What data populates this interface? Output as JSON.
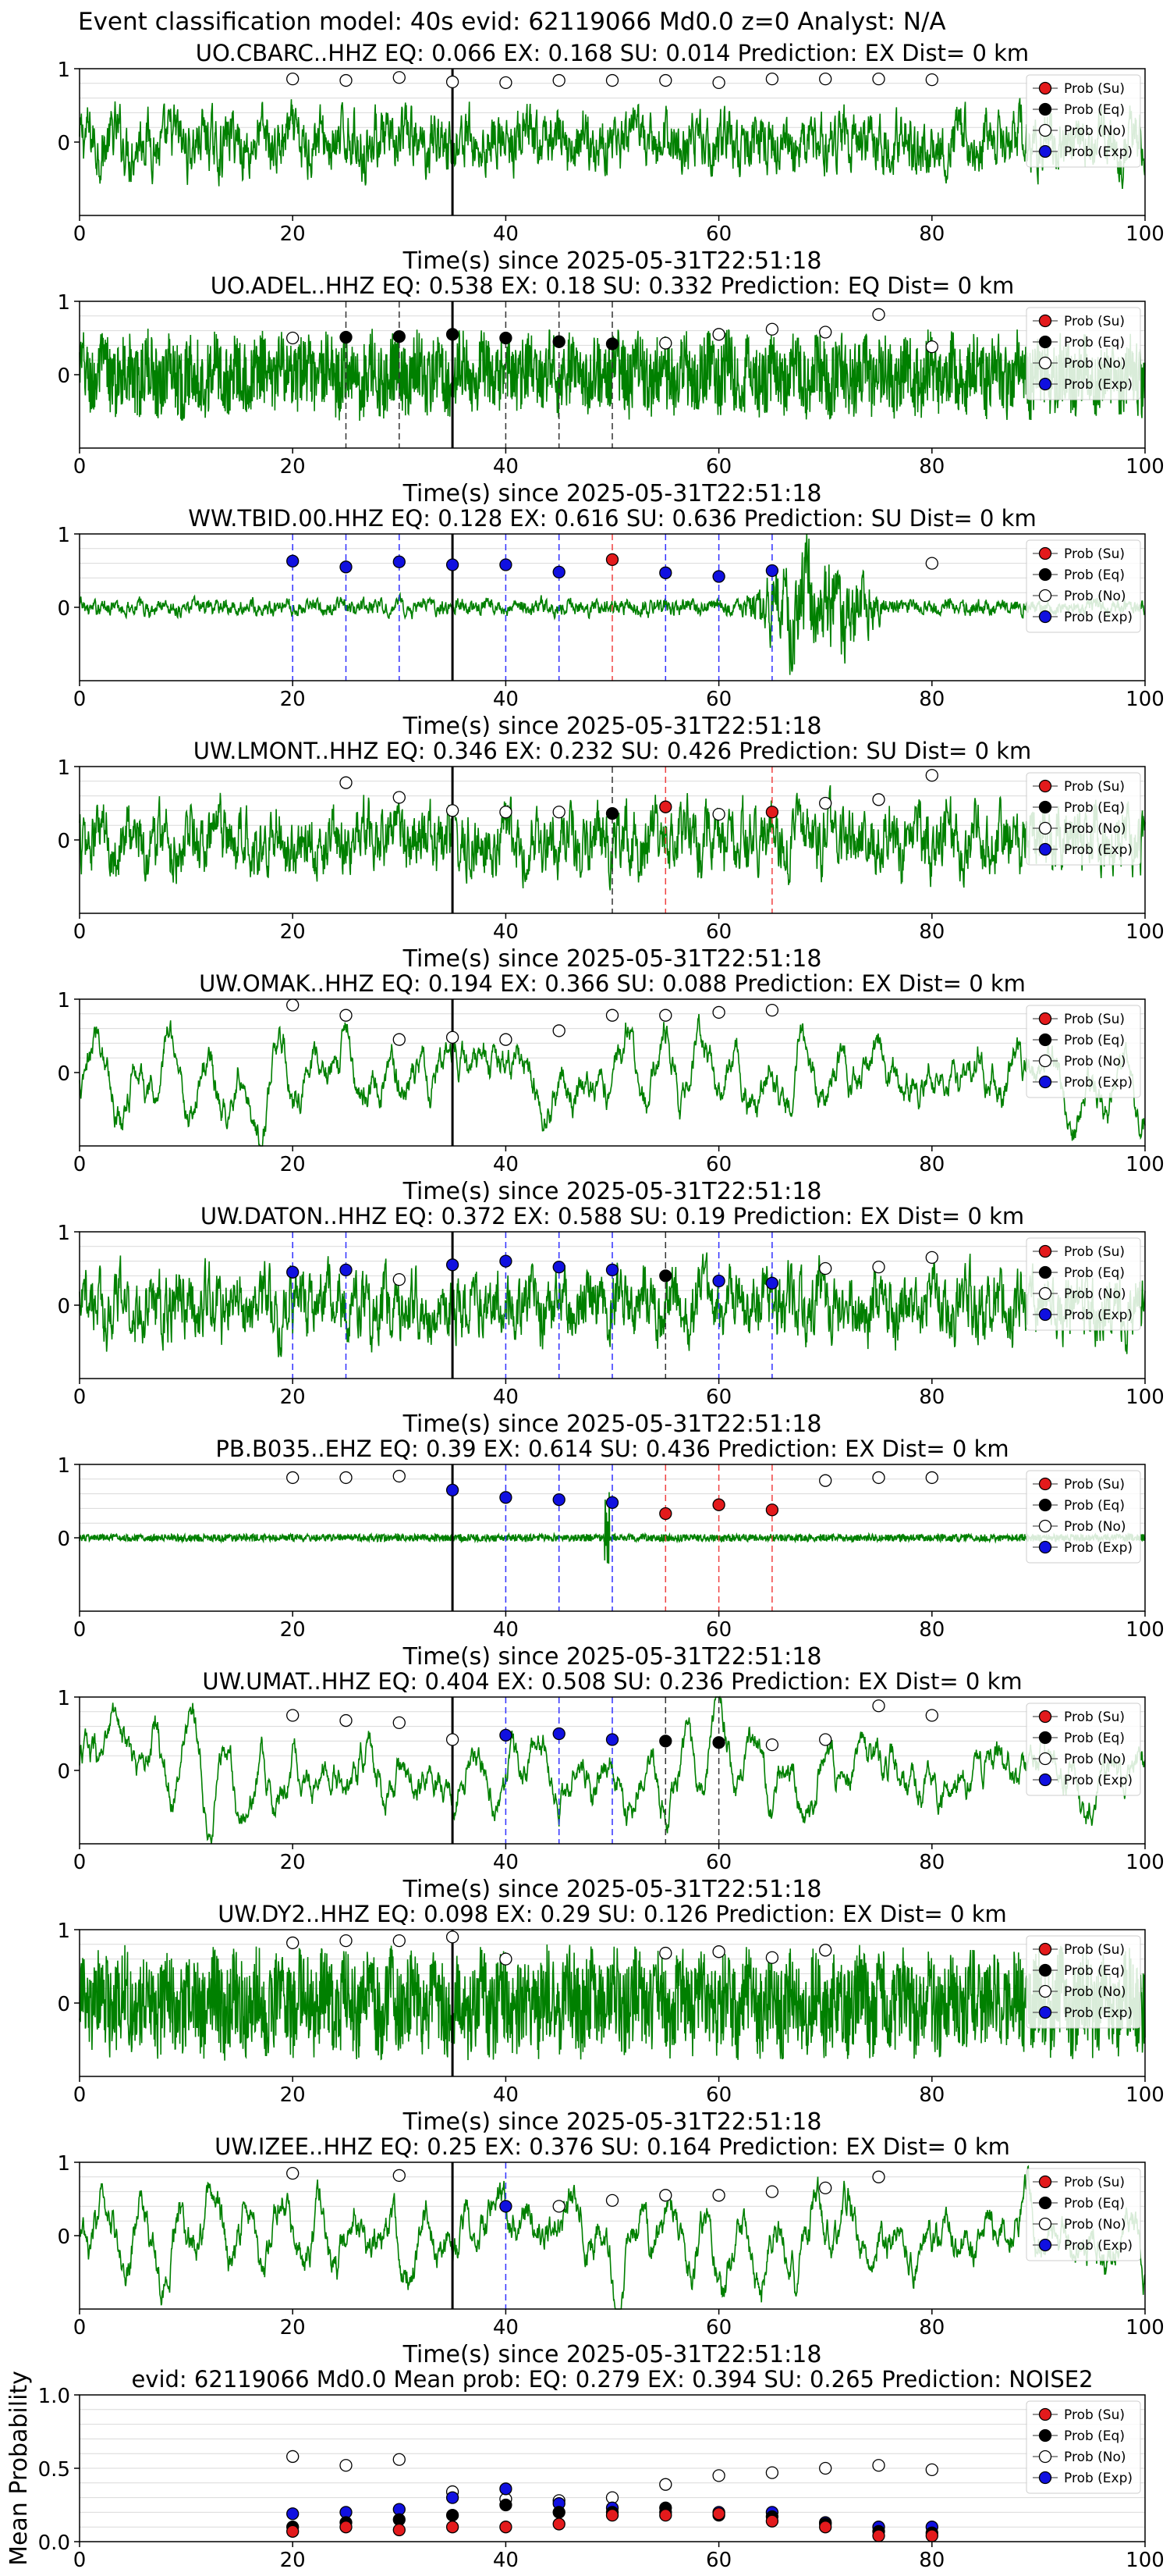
{
  "figure": {
    "title": "Event classification model: 40s evid: 62119066 Md0.0 z=0 Analyst: N/A"
  },
  "legend": [
    "Prob (Su)",
    "Prob (Eq)",
    "Prob (No)",
    "Prob (Exp)"
  ],
  "colors": {
    "su": "#e31a1c",
    "eq": "#000000",
    "no": "#ffffff",
    "exp": "#1010e0",
    "waveform": "#008000",
    "grid": "#d9d9d9"
  },
  "chart_data": [
    {
      "type": "line",
      "title": "UO.CBARC..HHZ   EQ: 0.066  EX: 0.168  SU: 0.014   Prediction: EX    Dist= 0 km",
      "xlabel": "Time(s) since 2025-05-31T22:51:18",
      "xlim": [
        0,
        100
      ],
      "ylim": [
        -1,
        1
      ],
      "xticks": [
        "0",
        "20",
        "40",
        "60",
        "80",
        "100"
      ],
      "yticks": [
        "0",
        "1"
      ],
      "grid": true,
      "waveform": {
        "amplitude": 0.45,
        "style": "broadband"
      },
      "origin_time": 35,
      "predictions": [
        {
          "t": 20,
          "class": "no",
          "p": 0.86
        },
        {
          "t": 25,
          "class": "no",
          "p": 0.84
        },
        {
          "t": 30,
          "class": "no",
          "p": 0.88
        },
        {
          "t": 35,
          "class": "no",
          "p": 0.82
        },
        {
          "t": 40,
          "class": "no",
          "p": 0.81
        },
        {
          "t": 45,
          "class": "no",
          "p": 0.84
        },
        {
          "t": 50,
          "class": "no",
          "p": 0.84
        },
        {
          "t": 55,
          "class": "no",
          "p": 0.84
        },
        {
          "t": 60,
          "class": "no",
          "p": 0.81
        },
        {
          "t": 65,
          "class": "no",
          "p": 0.86
        },
        {
          "t": 70,
          "class": "no",
          "p": 0.86
        },
        {
          "t": 75,
          "class": "no",
          "p": 0.86
        },
        {
          "t": 80,
          "class": "no",
          "p": 0.85
        }
      ]
    },
    {
      "type": "line",
      "title": "UO.ADEL..HHZ   EQ: 0.538  EX: 0.18  SU: 0.332   Prediction: EQ    Dist= 0 km",
      "xlabel": "Time(s) since 2025-05-31T22:51:18",
      "xlim": [
        0,
        100
      ],
      "ylim": [
        -1,
        1
      ],
      "xticks": [
        "0",
        "20",
        "40",
        "60",
        "80",
        "100"
      ],
      "yticks": [
        "0",
        "1"
      ],
      "grid": true,
      "waveform": {
        "amplitude": 0.55,
        "style": "noisy"
      },
      "origin_time": 35,
      "predictions": [
        {
          "t": 20,
          "class": "no",
          "p": 0.5
        },
        {
          "t": 25,
          "class": "eq",
          "p": 0.51
        },
        {
          "t": 30,
          "class": "eq",
          "p": 0.52
        },
        {
          "t": 35,
          "class": "eq",
          "p": 0.55
        },
        {
          "t": 40,
          "class": "eq",
          "p": 0.5
        },
        {
          "t": 45,
          "class": "eq",
          "p": 0.45
        },
        {
          "t": 50,
          "class": "eq",
          "p": 0.42
        },
        {
          "t": 55,
          "class": "no",
          "p": 0.43
        },
        {
          "t": 60,
          "class": "no",
          "p": 0.55
        },
        {
          "t": 65,
          "class": "no",
          "p": 0.62
        },
        {
          "t": 70,
          "class": "no",
          "p": 0.58
        },
        {
          "t": 75,
          "class": "no",
          "p": 0.82
        },
        {
          "t": 80,
          "class": "no",
          "p": 0.38
        }
      ]
    },
    {
      "type": "line",
      "title": "WW.TBID.00.HHZ   EQ: 0.128  EX: 0.616  SU: 0.636   Prediction: SU    Dist= 0 km",
      "xlabel": "Time(s) since 2025-05-31T22:51:18",
      "xlim": [
        0,
        100
      ],
      "ylim": [
        -1,
        1
      ],
      "xticks": [
        "0",
        "20",
        "40",
        "60",
        "80",
        "100"
      ],
      "yticks": [
        "0",
        "1"
      ],
      "grid": true,
      "waveform": {
        "amplitude": 0.12,
        "style": "burst",
        "burst_start": 62,
        "burst_end": 76,
        "burst_amp": 0.85
      },
      "origin_time": 35,
      "predictions": [
        {
          "t": 20,
          "class": "exp",
          "p": 0.63
        },
        {
          "t": 25,
          "class": "exp",
          "p": 0.55
        },
        {
          "t": 30,
          "class": "exp",
          "p": 0.62
        },
        {
          "t": 35,
          "class": "exp",
          "p": 0.58
        },
        {
          "t": 40,
          "class": "exp",
          "p": 0.58
        },
        {
          "t": 45,
          "class": "exp",
          "p": 0.48
        },
        {
          "t": 50,
          "class": "su",
          "p": 0.65
        },
        {
          "t": 55,
          "class": "exp",
          "p": 0.47
        },
        {
          "t": 60,
          "class": "exp",
          "p": 0.42
        },
        {
          "t": 65,
          "class": "exp",
          "p": 0.5
        },
        {
          "t": 80,
          "class": "no",
          "p": 0.6
        }
      ]
    },
    {
      "type": "line",
      "title": "UW.LMONT..HHZ   EQ: 0.346  EX: 0.232  SU: 0.426   Prediction: SU    Dist= 0 km",
      "xlabel": "Time(s) since 2025-05-31T22:51:18",
      "xlim": [
        0,
        100
      ],
      "ylim": [
        -1,
        1
      ],
      "xticks": [
        "0",
        "20",
        "40",
        "60",
        "80",
        "100"
      ],
      "yticks": [
        "0",
        "1"
      ],
      "grid": true,
      "waveform": {
        "amplitude": 0.5,
        "style": "broadband"
      },
      "origin_time": 35,
      "predictions": [
        {
          "t": 25,
          "class": "no",
          "p": 0.78
        },
        {
          "t": 30,
          "class": "no",
          "p": 0.58
        },
        {
          "t": 35,
          "class": "no",
          "p": 0.4
        },
        {
          "t": 40,
          "class": "no",
          "p": 0.38
        },
        {
          "t": 45,
          "class": "no",
          "p": 0.38
        },
        {
          "t": 50,
          "class": "eq",
          "p": 0.36
        },
        {
          "t": 55,
          "class": "su",
          "p": 0.45
        },
        {
          "t": 60,
          "class": "no",
          "p": 0.35
        },
        {
          "t": 65,
          "class": "su",
          "p": 0.38
        },
        {
          "t": 70,
          "class": "no",
          "p": 0.5
        },
        {
          "t": 75,
          "class": "no",
          "p": 0.55
        },
        {
          "t": 80,
          "class": "no",
          "p": 0.88
        }
      ]
    },
    {
      "type": "line",
      "title": "UW.OMAK..HHZ   EQ: 0.194  EX: 0.366  SU: 0.088   Prediction: EX    Dist= 0 km",
      "xlabel": "Time(s) since 2025-05-31T22:51:18",
      "xlim": [
        0,
        100
      ],
      "ylim": [
        -1,
        1
      ],
      "xticks": [
        "0",
        "20",
        "40",
        "60",
        "80",
        "100"
      ],
      "yticks": [
        "0",
        "1"
      ],
      "grid": true,
      "waveform": {
        "amplitude": 0.5,
        "style": "swell"
      },
      "origin_time": 35,
      "predictions": [
        {
          "t": 20,
          "class": "no",
          "p": 0.92
        },
        {
          "t": 25,
          "class": "no",
          "p": 0.78
        },
        {
          "t": 30,
          "class": "no",
          "p": 0.45
        },
        {
          "t": 35,
          "class": "no",
          "p": 0.48
        },
        {
          "t": 40,
          "class": "no",
          "p": 0.45
        },
        {
          "t": 45,
          "class": "no",
          "p": 0.57
        },
        {
          "t": 50,
          "class": "no",
          "p": 0.78
        },
        {
          "t": 55,
          "class": "no",
          "p": 0.78
        },
        {
          "t": 60,
          "class": "no",
          "p": 0.82
        },
        {
          "t": 65,
          "class": "no",
          "p": 0.85
        }
      ]
    },
    {
      "type": "line",
      "title": "UW.DATON..HHZ   EQ: 0.372  EX: 0.588  SU: 0.19   Prediction: EX    Dist= 0 km",
      "xlabel": "Time(s) since 2025-05-31T22:51:18",
      "xlim": [
        0,
        100
      ],
      "ylim": [
        -1,
        1
      ],
      "xticks": [
        "0",
        "20",
        "40",
        "60",
        "80",
        "100"
      ],
      "yticks": [
        "0",
        "1"
      ],
      "grid": true,
      "waveform": {
        "amplitude": 0.5,
        "style": "broadband"
      },
      "origin_time": 35,
      "predictions": [
        {
          "t": 20,
          "class": "exp",
          "p": 0.45
        },
        {
          "t": 25,
          "class": "exp",
          "p": 0.48
        },
        {
          "t": 30,
          "class": "no",
          "p": 0.35
        },
        {
          "t": 35,
          "class": "exp",
          "p": 0.55
        },
        {
          "t": 40,
          "class": "exp",
          "p": 0.6
        },
        {
          "t": 45,
          "class": "exp",
          "p": 0.52
        },
        {
          "t": 50,
          "class": "exp",
          "p": 0.48
        },
        {
          "t": 55,
          "class": "eq",
          "p": 0.4
        },
        {
          "t": 60,
          "class": "exp",
          "p": 0.33
        },
        {
          "t": 65,
          "class": "exp",
          "p": 0.3
        },
        {
          "t": 70,
          "class": "no",
          "p": 0.5
        },
        {
          "t": 75,
          "class": "no",
          "p": 0.52
        },
        {
          "t": 80,
          "class": "no",
          "p": 0.65
        }
      ]
    },
    {
      "type": "line",
      "title": "PB.B035..EHZ   EQ: 0.39  EX: 0.614  SU: 0.436   Prediction: EX    Dist= 0 km",
      "xlabel": "Time(s) since 2025-05-31T22:51:18",
      "xlim": [
        0,
        100
      ],
      "ylim": [
        -1,
        1
      ],
      "xticks": [
        "0",
        "20",
        "40",
        "60",
        "80",
        "100"
      ],
      "yticks": [
        "0",
        "1"
      ],
      "grid": true,
      "waveform": {
        "amplitude": 0.05,
        "style": "quiet",
        "spike_at": 49.5,
        "spike_amp": 0.7
      },
      "origin_time": 35,
      "predictions": [
        {
          "t": 20,
          "class": "no",
          "p": 0.82
        },
        {
          "t": 25,
          "class": "no",
          "p": 0.82
        },
        {
          "t": 30,
          "class": "no",
          "p": 0.84
        },
        {
          "t": 35,
          "class": "exp",
          "p": 0.65
        },
        {
          "t": 40,
          "class": "exp",
          "p": 0.55
        },
        {
          "t": 45,
          "class": "exp",
          "p": 0.52
        },
        {
          "t": 50,
          "class": "exp",
          "p": 0.48
        },
        {
          "t": 55,
          "class": "su",
          "p": 0.33
        },
        {
          "t": 60,
          "class": "su",
          "p": 0.45
        },
        {
          "t": 65,
          "class": "su",
          "p": 0.38
        },
        {
          "t": 70,
          "class": "no",
          "p": 0.78
        },
        {
          "t": 75,
          "class": "no",
          "p": 0.82
        },
        {
          "t": 80,
          "class": "no",
          "p": 0.82
        }
      ]
    },
    {
      "type": "line",
      "title": "UW.UMAT..HHZ   EQ: 0.404  EX: 0.508  SU: 0.236   Prediction: EX    Dist= 0 km",
      "xlabel": "Time(s) since 2025-05-31T22:51:18",
      "xlim": [
        0,
        100
      ],
      "ylim": [
        -1,
        1
      ],
      "xticks": [
        "0",
        "20",
        "40",
        "60",
        "80",
        "100"
      ],
      "yticks": [
        "0",
        "1"
      ],
      "grid": true,
      "waveform": {
        "amplitude": 0.45,
        "style": "swell"
      },
      "origin_time": 35,
      "predictions": [
        {
          "t": 20,
          "class": "no",
          "p": 0.75
        },
        {
          "t": 25,
          "class": "no",
          "p": 0.68
        },
        {
          "t": 30,
          "class": "no",
          "p": 0.65
        },
        {
          "t": 35,
          "class": "no",
          "p": 0.42
        },
        {
          "t": 40,
          "class": "exp",
          "p": 0.48
        },
        {
          "t": 45,
          "class": "exp",
          "p": 0.5
        },
        {
          "t": 50,
          "class": "exp",
          "p": 0.42
        },
        {
          "t": 55,
          "class": "eq",
          "p": 0.4
        },
        {
          "t": 60,
          "class": "eq",
          "p": 0.38
        },
        {
          "t": 65,
          "class": "no",
          "p": 0.35
        },
        {
          "t": 70,
          "class": "no",
          "p": 0.42
        },
        {
          "t": 75,
          "class": "no",
          "p": 0.88
        },
        {
          "t": 80,
          "class": "no",
          "p": 0.75
        }
      ]
    },
    {
      "type": "line",
      "title": "UW.DY2..HHZ   EQ: 0.098  EX: 0.29  SU: 0.126   Prediction: EX    Dist= 0 km",
      "xlabel": "Time(s) since 2025-05-31T22:51:18",
      "xlim": [
        0,
        100
      ],
      "ylim": [
        -1,
        1
      ],
      "xticks": [
        "0",
        "20",
        "40",
        "60",
        "80",
        "100"
      ],
      "yticks": [
        "0",
        "1"
      ],
      "grid": true,
      "waveform": {
        "amplitude": 0.7,
        "style": "noisy"
      },
      "origin_time": 35,
      "predictions": [
        {
          "t": 20,
          "class": "no",
          "p": 0.82
        },
        {
          "t": 25,
          "class": "no",
          "p": 0.85
        },
        {
          "t": 30,
          "class": "no",
          "p": 0.85
        },
        {
          "t": 35,
          "class": "no",
          "p": 0.9
        },
        {
          "t": 40,
          "class": "no",
          "p": 0.6
        },
        {
          "t": 55,
          "class": "no",
          "p": 0.68
        },
        {
          "t": 60,
          "class": "no",
          "p": 0.7
        },
        {
          "t": 65,
          "class": "no",
          "p": 0.62
        },
        {
          "t": 70,
          "class": "no",
          "p": 0.72
        }
      ]
    },
    {
      "type": "line",
      "title": "UW.IZEE..HHZ   EQ: 0.25  EX: 0.376  SU: 0.164   Prediction: EX    Dist= 0 km",
      "xlabel": "Time(s) since 2025-05-31T22:51:18",
      "xlim": [
        0,
        100
      ],
      "ylim": [
        -1,
        1
      ],
      "xticks": [
        "0",
        "20",
        "40",
        "60",
        "80",
        "100"
      ],
      "yticks": [
        "0",
        "1"
      ],
      "grid": true,
      "waveform": {
        "amplitude": 0.55,
        "style": "swell"
      },
      "origin_time": 35,
      "predictions": [
        {
          "t": 20,
          "class": "no",
          "p": 0.85
        },
        {
          "t": 30,
          "class": "no",
          "p": 0.82
        },
        {
          "t": 40,
          "class": "exp",
          "p": 0.4
        },
        {
          "t": 45,
          "class": "no",
          "p": 0.4
        },
        {
          "t": 50,
          "class": "no",
          "p": 0.48
        },
        {
          "t": 55,
          "class": "no",
          "p": 0.55
        },
        {
          "t": 60,
          "class": "no",
          "p": 0.55
        },
        {
          "t": 65,
          "class": "no",
          "p": 0.6
        },
        {
          "t": 70,
          "class": "no",
          "p": 0.65
        },
        {
          "t": 75,
          "class": "no",
          "p": 0.8
        }
      ]
    },
    {
      "type": "scatter",
      "title": "evid: 62119066  Md0.0   Mean prob:   EQ: 0.279  EX: 0.394  SU: 0.265   Prediction: NOISE2",
      "ylabel": "Mean Probability",
      "xlim": [
        0,
        100
      ],
      "ylim": [
        0,
        1
      ],
      "xticks": [
        "0",
        "20",
        "40",
        "60",
        "80",
        "100"
      ],
      "yticks": [
        "0.0",
        "0.5",
        "1.0"
      ],
      "grid": true,
      "x": [
        20,
        25,
        30,
        35,
        40,
        45,
        50,
        55,
        60,
        65,
        70,
        75,
        80
      ],
      "series": [
        {
          "name": "Prob (No)",
          "key": "no",
          "values": [
            0.58,
            0.52,
            0.56,
            0.34,
            0.29,
            0.28,
            0.3,
            0.39,
            0.45,
            0.47,
            0.5,
            0.52,
            0.49
          ]
        },
        {
          "name": "Prob (Exp)",
          "key": "exp",
          "values": [
            0.19,
            0.2,
            0.22,
            0.3,
            0.36,
            0.26,
            0.23,
            0.2,
            0.2,
            0.2,
            0.13,
            0.1,
            0.1
          ]
        },
        {
          "name": "Prob (Eq)",
          "key": "eq",
          "values": [
            0.1,
            0.13,
            0.15,
            0.18,
            0.25,
            0.2,
            0.2,
            0.23,
            0.18,
            0.17,
            0.12,
            0.07,
            0.06
          ]
        },
        {
          "name": "Prob (Su)",
          "key": "su",
          "values": [
            0.07,
            0.1,
            0.08,
            0.1,
            0.1,
            0.12,
            0.18,
            0.18,
            0.19,
            0.14,
            0.1,
            0.04,
            0.04
          ]
        }
      ]
    }
  ]
}
